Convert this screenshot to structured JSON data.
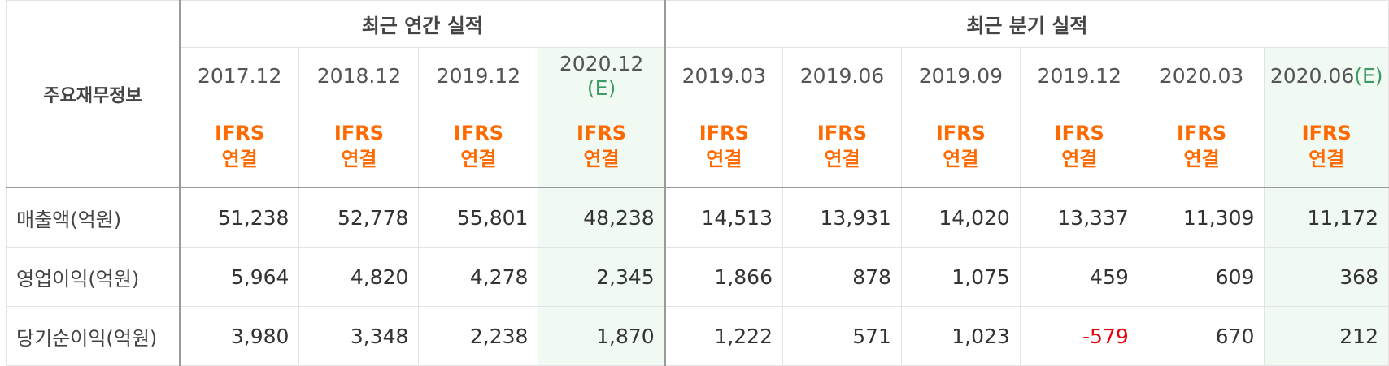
{
  "table": {
    "row_header_label": "주요재무정보",
    "groups": [
      {
        "label": "최근 연간 실적"
      },
      {
        "label": "최근 분기 실적"
      }
    ],
    "periods": [
      {
        "label": "2017.12",
        "est": ""
      },
      {
        "label": "2018.12",
        "est": ""
      },
      {
        "label": "2019.12",
        "est": ""
      },
      {
        "label": "2020.12",
        "est": "(E)"
      },
      {
        "label": "2019.03",
        "est": ""
      },
      {
        "label": "2019.06",
        "est": ""
      },
      {
        "label": "2019.09",
        "est": ""
      },
      {
        "label": "2019.12",
        "est": ""
      },
      {
        "label": "2020.03",
        "est": ""
      },
      {
        "label": "2020.06",
        "est": "(E)"
      }
    ],
    "standard": {
      "line1": "IFRS",
      "line2": "연결"
    },
    "rows": [
      {
        "label": "매출액(억원)",
        "values": [
          "51,238",
          "52,778",
          "55,801",
          "48,238",
          "14,513",
          "13,931",
          "14,020",
          "13,337",
          "11,309",
          "11,172"
        ]
      },
      {
        "label": "영업이익(억원)",
        "values": [
          "5,964",
          "4,820",
          "4,278",
          "2,345",
          "1,866",
          "878",
          "1,075",
          "459",
          "609",
          "368"
        ]
      },
      {
        "label": "당기순이익(억원)",
        "values": [
          "3,980",
          "3,348",
          "2,238",
          "1,870",
          "1,222",
          "571",
          "1,023",
          "-579",
          "670",
          "212"
        ]
      }
    ],
    "colors": {
      "ifrs": "#ff6a00",
      "estimate": "#3c9a64",
      "negative": "#e8000b",
      "highlight_bg": "#f1f9f3"
    }
  }
}
